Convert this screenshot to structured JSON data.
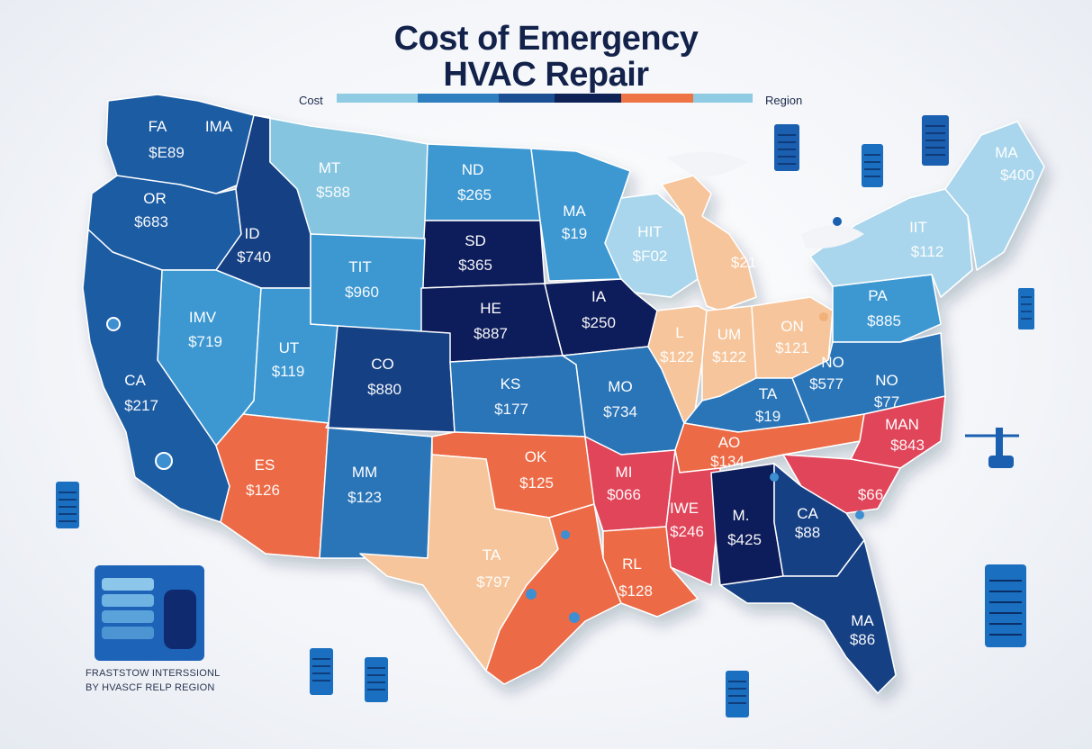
{
  "title": {
    "line1": "Cost of Emergency",
    "line2": "HVAC Repair"
  },
  "legend": {
    "left_label": "Cost",
    "right_label": "Region",
    "segments": [
      "#8fcbe3",
      "#2d7fc0",
      "#1b4f93",
      "#0f2256",
      "#ee7445",
      "#f5c8a3",
      "#8fcbe3"
    ]
  },
  "colors": {
    "light_blue": "#86c5e0",
    "sky_blue": "#3c98d2",
    "mid_blue": "#2a74b8",
    "blue": "#1e5ca3",
    "dark_blue": "#163f84",
    "navy": "#0f1f5a",
    "orange": "#ec6b45",
    "red": "#e0445a",
    "peach": "#f6c59b",
    "pale_blue": "#a9d6ec"
  },
  "states": [
    {
      "abbr": "FA",
      "cost": "$E89"
    },
    {
      "abbr": "IMA",
      "cost": ""
    },
    {
      "abbr": "OR",
      "cost": "$683"
    },
    {
      "abbr": "ID",
      "cost": "$740"
    },
    {
      "abbr": "MT",
      "cost": "$588"
    },
    {
      "abbr": "ND",
      "cost": "$265"
    },
    {
      "abbr": "SD",
      "cost": "$365"
    },
    {
      "abbr": "MA",
      "cost": "$19"
    },
    {
      "abbr": "HIT",
      "cost": "$F02"
    },
    {
      "abbr": "MA",
      "cost": "$400"
    },
    {
      "abbr": "IIT",
      "cost": "$112"
    },
    {
      "abbr": "TIT",
      "cost": "$960"
    },
    {
      "abbr": "IA",
      "cost": "$250"
    },
    {
      "abbr": "HE",
      "cost": "$887"
    },
    {
      "abbr": "IMV",
      "cost": "$719"
    },
    {
      "abbr": "UT",
      "cost": "$119"
    },
    {
      "abbr": "CO",
      "cost": "$880"
    },
    {
      "abbr": "KS",
      "cost": "$177"
    },
    {
      "abbr": "MO",
      "cost": "$734"
    },
    {
      "abbr": "L",
      "cost": "$122"
    },
    {
      "abbr": "UM",
      "cost": "$122"
    },
    {
      "abbr": "ON",
      "cost": "$121"
    },
    {
      "abbr": "PA",
      "cost": "$885"
    },
    {
      "abbr": "NO",
      "cost": "$577"
    },
    {
      "abbr": "NO",
      "cost": "$77"
    },
    {
      "abbr": "CA",
      "cost": "$217"
    },
    {
      "abbr": "TA",
      "cost": "$19"
    },
    {
      "abbr": "ES",
      "cost": "$126"
    },
    {
      "abbr": "MM",
      "cost": "$123"
    },
    {
      "abbr": "OK",
      "cost": "$125"
    },
    {
      "abbr": "MI",
      "cost": "$066"
    },
    {
      "abbr": "IWE",
      "cost": "$246"
    },
    {
      "abbr": "M.",
      "cost": "$425"
    },
    {
      "abbr": "CA",
      "cost": "$88"
    },
    {
      "abbr": "MAN",
      "cost": "$843"
    },
    {
      "abbr": "AO",
      "cost": "$134"
    },
    {
      "abbr": "",
      "cost": "$66"
    },
    {
      "abbr": "TA",
      "cost": "$797"
    },
    {
      "abbr": "RL",
      "cost": "$128"
    },
    {
      "abbr": "MA",
      "cost": "$86"
    },
    {
      "abbr": "",
      "cost": "$21"
    }
  ],
  "footnote": {
    "line1": "FRASTSTOW INTERSSIONL",
    "line2": "BY HVASCF RELP REGION"
  },
  "icons": [
    "hvac-unit-icon",
    "thermostat-panel-icon",
    "map-pin-icon",
    "valve-icon"
  ]
}
